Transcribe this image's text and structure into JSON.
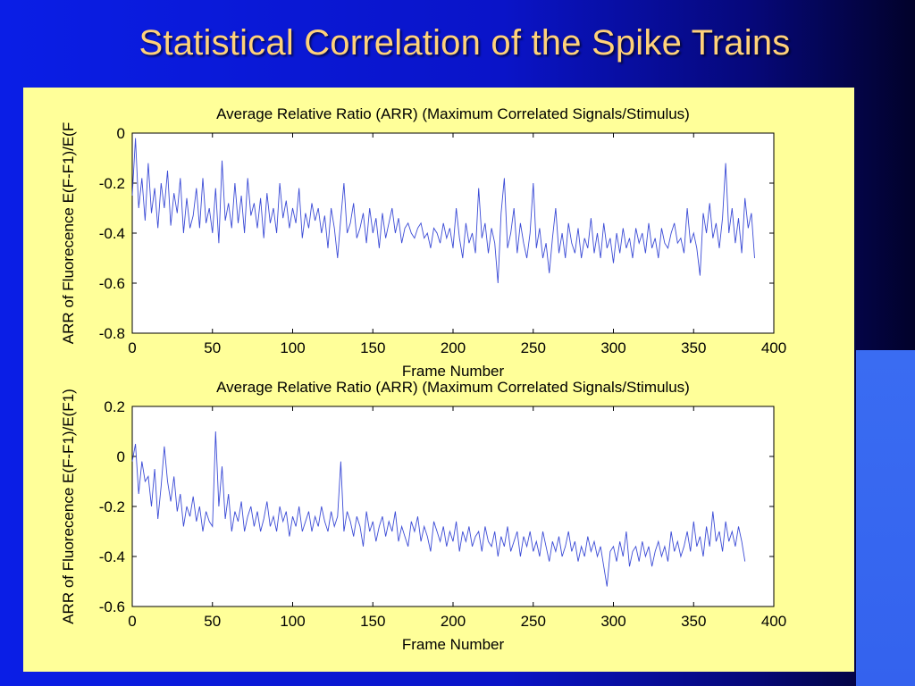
{
  "slide": {
    "title": "Statistical Correlation of the Spike Trains",
    "colors": {
      "background": "#0a1ee6",
      "title": "#ffd27a",
      "figure_bg": "#ffff99",
      "trace": "#3b4bd6"
    }
  },
  "chart_data": [
    {
      "type": "line",
      "title": "Average Relative Ratio (ARR) (Maximum Correlated Signals/Stimulus)",
      "xlabel": "Frame Number",
      "ylabel": "ARR of Fluorecence E(F-F1)/E(F",
      "xlim": [
        0,
        400
      ],
      "ylim": [
        -0.8,
        0
      ],
      "xticks": [
        0,
        50,
        100,
        150,
        200,
        250,
        300,
        350,
        400
      ],
      "yticks": [
        0,
        -0.2,
        -0.4,
        -0.6,
        -0.8
      ],
      "series": [
        {
          "color": "#3b4bd6",
          "x_start": 0,
          "x_step": 2,
          "values": [
            -0.25,
            -0.02,
            -0.3,
            -0.18,
            -0.35,
            -0.12,
            -0.32,
            -0.22,
            -0.38,
            -0.2,
            -0.3,
            -0.15,
            -0.37,
            -0.24,
            -0.32,
            -0.18,
            -0.4,
            -0.26,
            -0.38,
            -0.33,
            -0.22,
            -0.38,
            -0.18,
            -0.36,
            -0.3,
            -0.4,
            -0.22,
            -0.44,
            -0.11,
            -0.35,
            -0.28,
            -0.38,
            -0.2,
            -0.36,
            -0.25,
            -0.4,
            -0.18,
            -0.33,
            -0.28,
            -0.38,
            -0.26,
            -0.42,
            -0.24,
            -0.36,
            -0.3,
            -0.4,
            -0.2,
            -0.34,
            -0.27,
            -0.38,
            -0.3,
            -0.36,
            -0.22,
            -0.42,
            -0.32,
            -0.38,
            -0.28,
            -0.35,
            -0.3,
            -0.4,
            -0.33,
            -0.46,
            -0.3,
            -0.38,
            -0.5,
            -0.34,
            -0.2,
            -0.4,
            -0.36,
            -0.28,
            -0.42,
            -0.38,
            -0.32,
            -0.44,
            -0.3,
            -0.4,
            -0.34,
            -0.46,
            -0.32,
            -0.42,
            -0.36,
            -0.3,
            -0.4,
            -0.34,
            -0.44,
            -0.38,
            -0.36,
            -0.4,
            -0.42,
            -0.38,
            -0.36,
            -0.42,
            -0.4,
            -0.46,
            -0.38,
            -0.4,
            -0.44,
            -0.36,
            -0.42,
            -0.38,
            -0.46,
            -0.3,
            -0.42,
            -0.5,
            -0.36,
            -0.44,
            -0.4,
            -0.48,
            -0.22,
            -0.42,
            -0.36,
            -0.48,
            -0.38,
            -0.44,
            -0.6,
            -0.32,
            -0.18,
            -0.46,
            -0.4,
            -0.3,
            -0.48,
            -0.36,
            -0.44,
            -0.5,
            -0.4,
            -0.2,
            -0.46,
            -0.38,
            -0.5,
            -0.44,
            -0.56,
            -0.42,
            -0.3,
            -0.48,
            -0.4,
            -0.5,
            -0.36,
            -0.44,
            -0.48,
            -0.38,
            -0.5,
            -0.42,
            -0.46,
            -0.34,
            -0.48,
            -0.4,
            -0.5,
            -0.36,
            -0.46,
            -0.42,
            -0.52,
            -0.4,
            -0.48,
            -0.38,
            -0.46,
            -0.42,
            -0.5,
            -0.38,
            -0.44,
            -0.4,
            -0.48,
            -0.36,
            -0.46,
            -0.42,
            -0.5,
            -0.38,
            -0.44,
            -0.46,
            -0.4,
            -0.36,
            -0.44,
            -0.42,
            -0.48,
            -0.3,
            -0.44,
            -0.4,
            -0.46,
            -0.57,
            -0.32,
            -0.4,
            -0.28,
            -0.42,
            -0.36,
            -0.46,
            -0.34,
            -0.12,
            -0.4,
            -0.3,
            -0.44,
            -0.34,
            -0.48,
            -0.26,
            -0.38,
            -0.32,
            -0.5
          ]
        }
      ]
    },
    {
      "type": "line",
      "title": "Average Relative Ratio (ARR) (Maximum Correlated Signals/Stimulus)",
      "xlabel": "Frame Number",
      "ylabel": "ARR of Fluorecence E(F-F1)/E(F1)",
      "xlim": [
        0,
        400
      ],
      "ylim": [
        -0.6,
        0.2
      ],
      "xticks": [
        0,
        50,
        100,
        150,
        200,
        250,
        300,
        350,
        400
      ],
      "yticks": [
        0.2,
        0,
        -0.2,
        -0.4,
        -0.6
      ],
      "series": [
        {
          "color": "#3b4bd6",
          "x_start": 0,
          "x_step": 2,
          "values": [
            -0.02,
            0.05,
            -0.15,
            -0.02,
            -0.1,
            -0.08,
            -0.2,
            -0.05,
            -0.25,
            -0.12,
            0.04,
            -0.1,
            -0.18,
            -0.08,
            -0.22,
            -0.15,
            -0.28,
            -0.2,
            -0.24,
            -0.16,
            -0.26,
            -0.2,
            -0.3,
            -0.22,
            -0.26,
            -0.28,
            0.1,
            -0.2,
            -0.04,
            -0.25,
            -0.15,
            -0.3,
            -0.22,
            -0.26,
            -0.18,
            -0.3,
            -0.24,
            -0.2,
            -0.28,
            -0.22,
            -0.3,
            -0.25,
            -0.18,
            -0.28,
            -0.24,
            -0.3,
            -0.2,
            -0.26,
            -0.22,
            -0.32,
            -0.24,
            -0.28,
            -0.2,
            -0.3,
            -0.26,
            -0.22,
            -0.3,
            -0.24,
            -0.28,
            -0.2,
            -0.26,
            -0.3,
            -0.22,
            -0.28,
            -0.24,
            -0.02,
            -0.3,
            -0.22,
            -0.26,
            -0.32,
            -0.24,
            -0.28,
            -0.36,
            -0.22,
            -0.3,
            -0.26,
            -0.34,
            -0.28,
            -0.24,
            -0.32,
            -0.26,
            -0.3,
            -0.22,
            -0.34,
            -0.28,
            -0.32,
            -0.36,
            -0.26,
            -0.3,
            -0.24,
            -0.34,
            -0.28,
            -0.32,
            -0.38,
            -0.26,
            -0.3,
            -0.34,
            -0.28,
            -0.36,
            -0.3,
            -0.34,
            -0.26,
            -0.38,
            -0.3,
            -0.34,
            -0.28,
            -0.36,
            -0.32,
            -0.3,
            -0.38,
            -0.28,
            -0.34,
            -0.36,
            -0.3,
            -0.4,
            -0.32,
            -0.36,
            -0.28,
            -0.38,
            -0.34,
            -0.3,
            -0.4,
            -0.32,
            -0.36,
            -0.3,
            -0.38,
            -0.34,
            -0.4,
            -0.3,
            -0.36,
            -0.42,
            -0.34,
            -0.38,
            -0.32,
            -0.4,
            -0.36,
            -0.3,
            -0.38,
            -0.34,
            -0.42,
            -0.36,
            -0.4,
            -0.32,
            -0.38,
            -0.34,
            -0.4,
            -0.36,
            -0.44,
            -0.52,
            -0.38,
            -0.36,
            -0.42,
            -0.34,
            -0.4,
            -0.3,
            -0.44,
            -0.38,
            -0.36,
            -0.42,
            -0.34,
            -0.4,
            -0.36,
            -0.44,
            -0.38,
            -0.34,
            -0.4,
            -0.36,
            -0.42,
            -0.3,
            -0.38,
            -0.34,
            -0.4,
            -0.36,
            -0.3,
            -0.38,
            -0.26,
            -0.36,
            -0.32,
            -0.4,
            -0.28,
            -0.36,
            -0.22,
            -0.34,
            -0.3,
            -0.38,
            -0.26,
            -0.34,
            -0.3,
            -0.36,
            -0.28,
            -0.34,
            -0.42
          ]
        }
      ]
    }
  ]
}
